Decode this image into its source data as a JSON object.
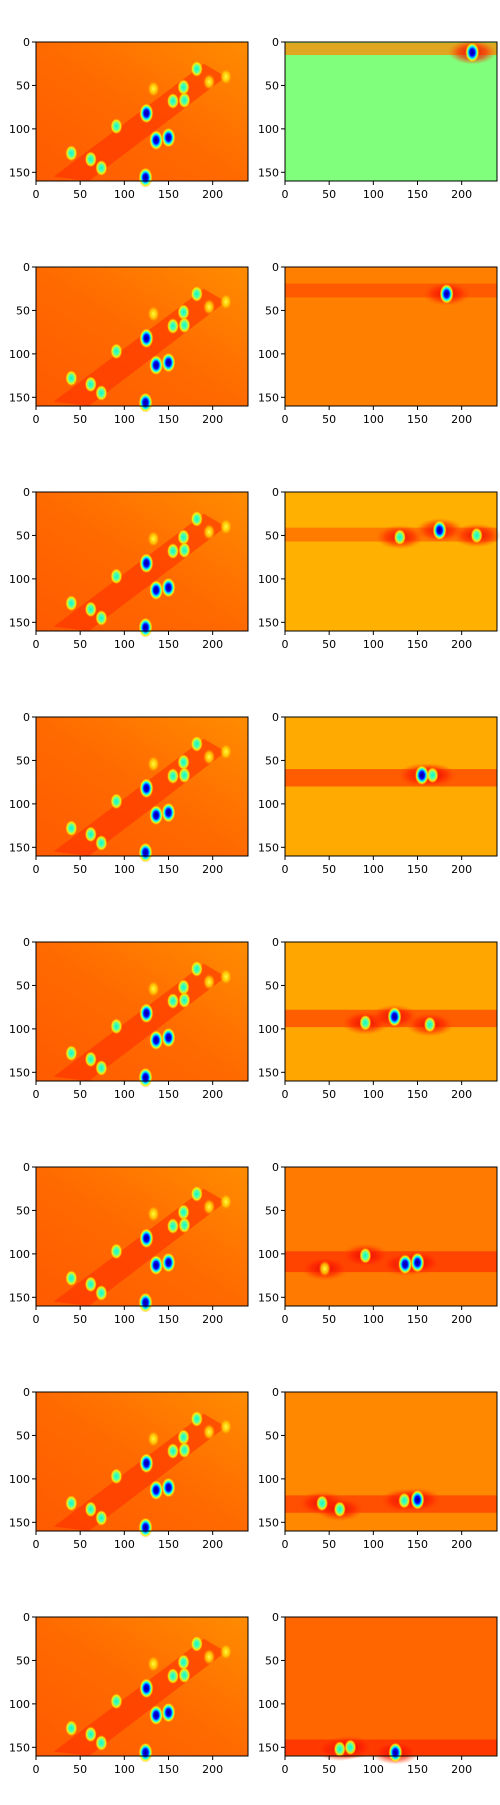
{
  "chart_data": {
    "type": "heatmap",
    "grid": {
      "rows": 8,
      "cols": 2
    },
    "colormap": "jet",
    "colormap_stops": [
      "#00007f",
      "#0000ff",
      "#00ffff",
      "#7fff7f",
      "#ffff00",
      "#ff7f00",
      "#ff0000",
      "#7f0000"
    ],
    "x_ticks": [
      0,
      50,
      100,
      150,
      200
    ],
    "y_ticks": [
      0,
      50,
      100,
      150
    ],
    "xlim": [
      0,
      240
    ],
    "ylim": [
      160,
      0
    ],
    "grid_lines": false,
    "legend": "none",
    "left_blobs": [
      {
        "x": 182,
        "y": 31,
        "kind": "cyan"
      },
      {
        "x": 167,
        "y": 52,
        "kind": "cyan"
      },
      {
        "x": 155,
        "y": 68,
        "kind": "cyan"
      },
      {
        "x": 168,
        "y": 67,
        "kind": "cyan"
      },
      {
        "x": 125,
        "y": 82,
        "kind": "blue"
      },
      {
        "x": 91,
        "y": 97,
        "kind": "cyan"
      },
      {
        "x": 136,
        "y": 113,
        "kind": "blue"
      },
      {
        "x": 150,
        "y": 110,
        "kind": "blue"
      },
      {
        "x": 40,
        "y": 128,
        "kind": "cyan"
      },
      {
        "x": 62,
        "y": 135,
        "kind": "cyan"
      },
      {
        "x": 74,
        "y": 145,
        "kind": "cyan"
      },
      {
        "x": 124,
        "y": 156,
        "kind": "blue"
      },
      {
        "x": 215,
        "y": 40,
        "kind": "yellow"
      },
      {
        "x": 196,
        "y": 46,
        "kind": "yellow"
      },
      {
        "x": 133,
        "y": 54,
        "kind": "yellow"
      }
    ],
    "panels": [
      {
        "row": 1,
        "right": {
          "background": "#80ff7d",
          "band_y": 8,
          "band_height": 14,
          "band_color": "#ff8800",
          "blobs": [
            {
              "x": 212,
              "y": 12,
              "kind": "blue"
            }
          ]
        }
      },
      {
        "row": 2,
        "right": {
          "background": "#ff8000",
          "band_y": 27,
          "band_height": 16,
          "band_color": "#ff4d00",
          "blobs": [
            {
              "x": 183,
              "y": 31,
              "kind": "blue"
            }
          ]
        }
      },
      {
        "row": 3,
        "right": {
          "background": "#ffb000",
          "band_y": 49,
          "band_height": 16,
          "band_color": "#ff6a00",
          "blobs": [
            {
              "x": 130,
              "y": 52,
              "kind": "cyan"
            },
            {
              "x": 175,
              "y": 44,
              "kind": "blue"
            },
            {
              "x": 217,
              "y": 50,
              "kind": "cyan"
            }
          ]
        }
      },
      {
        "row": 4,
        "right": {
          "background": "#ffaa00",
          "band_y": 70,
          "band_height": 20,
          "band_color": "#ff4000",
          "blobs": [
            {
              "x": 155,
              "y": 67,
              "kind": "blue"
            },
            {
              "x": 167,
              "y": 67,
              "kind": "cyan"
            }
          ]
        }
      },
      {
        "row": 5,
        "right": {
          "background": "#ffa600",
          "band_y": 88,
          "band_height": 20,
          "band_color": "#ff4600",
          "blobs": [
            {
              "x": 91,
              "y": 93,
              "kind": "cyan"
            },
            {
              "x": 124,
              "y": 86,
              "kind": "blue"
            },
            {
              "x": 164,
              "y": 95,
              "kind": "cyan"
            }
          ]
        }
      },
      {
        "row": 6,
        "right": {
          "background": "#ff7a00",
          "band_y": 109,
          "band_height": 24,
          "band_color": "#ff3300",
          "blobs": [
            {
              "x": 91,
              "y": 102,
              "kind": "cyan"
            },
            {
              "x": 136,
              "y": 112,
              "kind": "blue"
            },
            {
              "x": 150,
              "y": 110,
              "kind": "blue"
            },
            {
              "x": 45,
              "y": 117,
              "kind": "yellow"
            }
          ]
        }
      },
      {
        "row": 7,
        "right": {
          "background": "#ff8800",
          "band_y": 129,
          "band_height": 20,
          "band_color": "#ff3c00",
          "blobs": [
            {
              "x": 42,
              "y": 128,
              "kind": "cyan"
            },
            {
              "x": 62,
              "y": 135,
              "kind": "cyan"
            },
            {
              "x": 135,
              "y": 125,
              "kind": "cyan"
            },
            {
              "x": 150,
              "y": 124,
              "kind": "blue"
            }
          ]
        }
      },
      {
        "row": 8,
        "right": {
          "background": "#ff6600",
          "band_y": 150,
          "band_height": 18,
          "band_color": "#ff2a00",
          "blobs": [
            {
              "x": 62,
              "y": 152,
              "kind": "cyan"
            },
            {
              "x": 74,
              "y": 150,
              "kind": "cyan"
            },
            {
              "x": 125,
              "y": 156,
              "kind": "blue"
            }
          ]
        }
      }
    ]
  }
}
